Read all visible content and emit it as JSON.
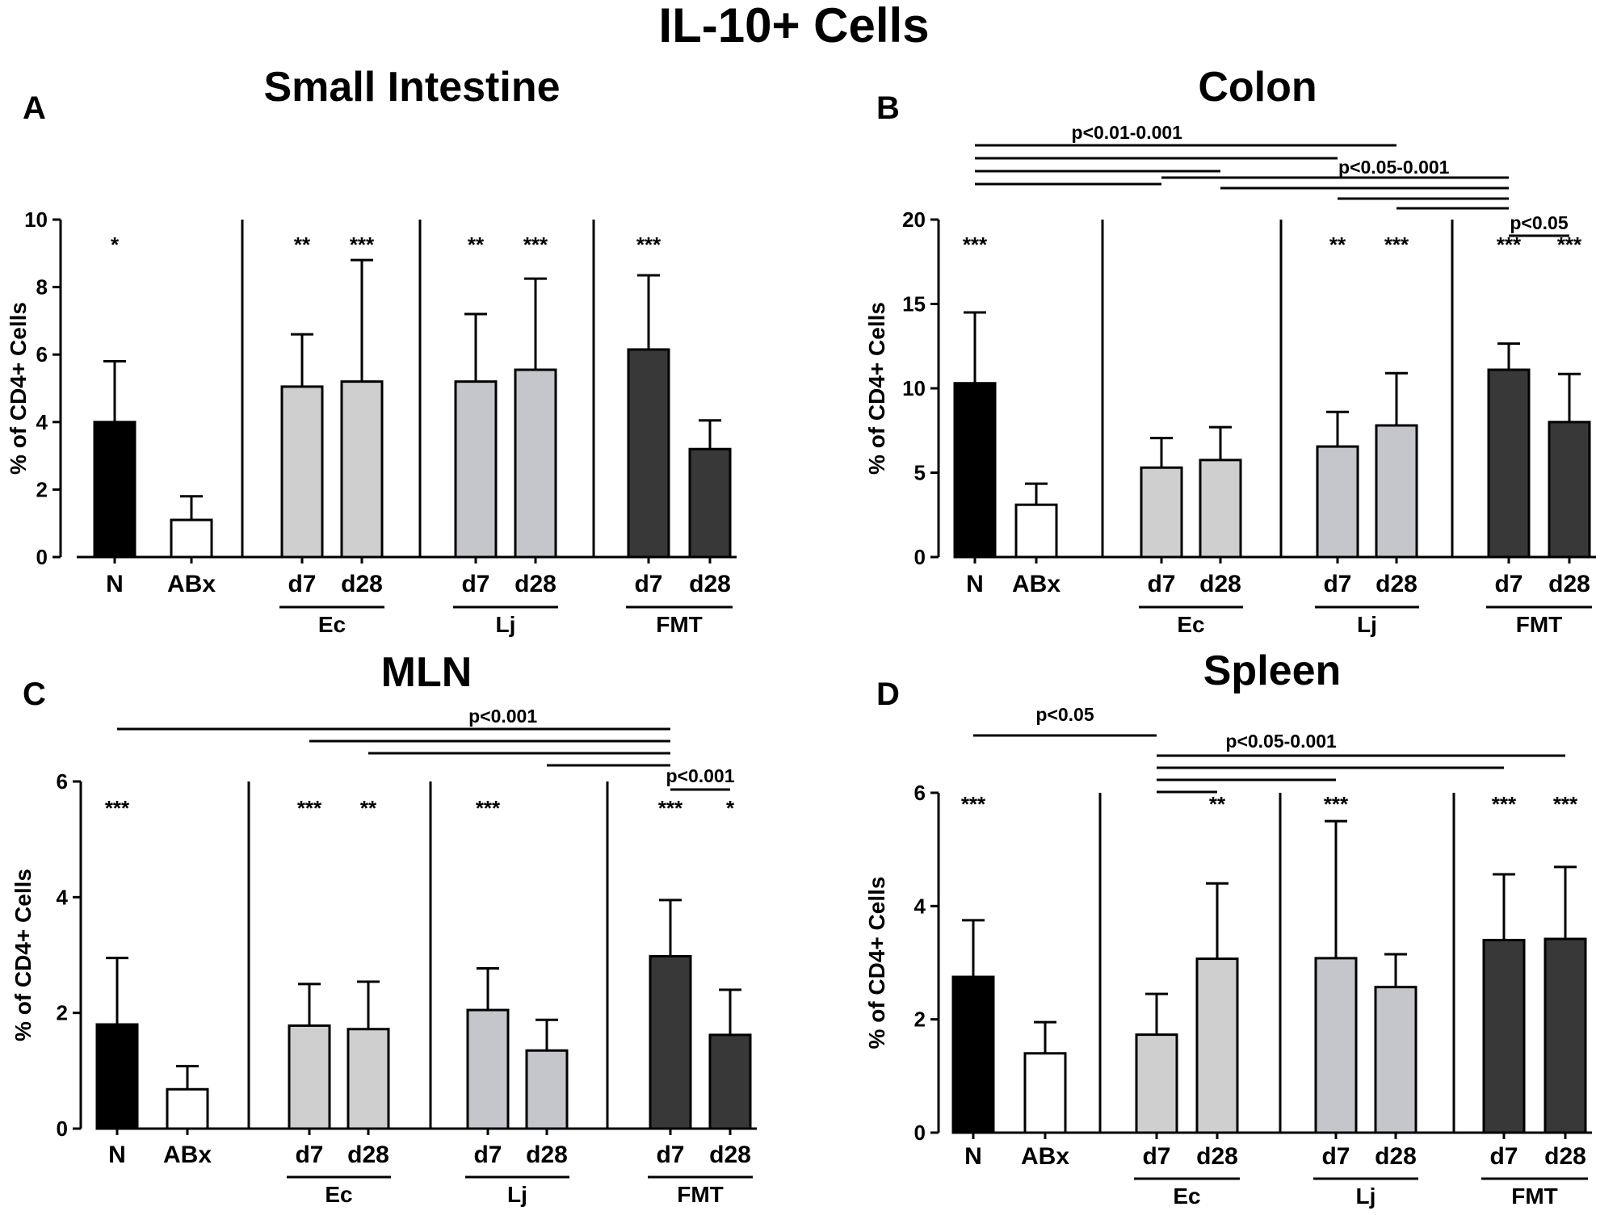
{
  "figure_title": "IL-10+ Cells",
  "colors": {
    "naive": "#000000",
    "abx": "#ffffff",
    "ec": "#cfcfcf",
    "lj": "#c4c6cb",
    "fmt": "#383838",
    "axis": "#000000"
  },
  "chart_data": [
    {
      "panel": "A",
      "type": "bar",
      "title": "Small Intestine",
      "ylabel": "% of CD4+ Cells",
      "ylim": [
        0,
        10
      ],
      "yticks": [
        0,
        2,
        4,
        6,
        8,
        10
      ],
      "categories": [
        "N",
        "ABx",
        "d7",
        "d28",
        "d7",
        "d28",
        "d7",
        "d28"
      ],
      "groups": [
        {
          "label": "Ec",
          "members": [
            2,
            3
          ]
        },
        {
          "label": "Lj",
          "members": [
            4,
            5
          ]
        },
        {
          "label": "FMT",
          "members": [
            6,
            7
          ]
        }
      ],
      "values": [
        4.0,
        1.1,
        5.05,
        5.2,
        5.2,
        5.55,
        6.15,
        3.2
      ],
      "errors": [
        1.8,
        0.7,
        1.55,
        3.6,
        2.0,
        2.7,
        2.2,
        0.85
      ],
      "fill_keys": [
        "naive",
        "abx",
        "ec",
        "ec",
        "lj",
        "lj",
        "fmt",
        "fmt"
      ],
      "significance": [
        "*",
        "",
        "**",
        "***",
        "**",
        "***",
        "***",
        ""
      ],
      "comparisons": []
    },
    {
      "panel": "B",
      "type": "bar",
      "title": "Colon",
      "ylabel": "% of CD4+ Cells",
      "ylim": [
        0,
        20
      ],
      "yticks": [
        0,
        5,
        10,
        15,
        20
      ],
      "categories": [
        "N",
        "ABx",
        "d7",
        "d28",
        "d7",
        "d28",
        "d7",
        "d28"
      ],
      "groups": [
        {
          "label": "Ec",
          "members": [
            2,
            3
          ]
        },
        {
          "label": "Lj",
          "members": [
            4,
            5
          ]
        },
        {
          "label": "FMT",
          "members": [
            6,
            7
          ]
        }
      ],
      "values": [
        10.3,
        3.1,
        5.3,
        5.75,
        6.55,
        7.8,
        11.1,
        8.0
      ],
      "errors": [
        4.2,
        1.25,
        1.75,
        1.95,
        2.05,
        3.1,
        1.55,
        2.85
      ],
      "fill_keys": [
        "naive",
        "abx",
        "ec",
        "ec",
        "lj",
        "lj",
        "fmt",
        "fmt"
      ],
      "significance": [
        "***",
        "",
        "",
        "",
        "**",
        "***",
        "***",
        "***"
      ],
      "comparisons": [
        {
          "label": "p<0.01-0.001",
          "lines": [
            [
              0,
              5
            ],
            [
              0,
              4
            ],
            [
              0,
              3
            ],
            [
              0,
              2
            ]
          ]
        },
        {
          "label": "p<0.05-0.001",
          "lines": [
            [
              2,
              6
            ],
            [
              3,
              6
            ],
            [
              4,
              6
            ],
            [
              5,
              6
            ]
          ]
        },
        {
          "label": "p<0.05",
          "lines": [
            [
              6,
              7
            ]
          ]
        }
      ]
    },
    {
      "panel": "C",
      "type": "bar",
      "title": "MLN",
      "ylabel": "% of CD4+ Cells",
      "ylim": [
        0,
        6
      ],
      "yticks": [
        0,
        2,
        4,
        6
      ],
      "categories": [
        "N",
        "ABx",
        "d7",
        "d28",
        "d7",
        "d28",
        "d7",
        "d28"
      ],
      "groups": [
        {
          "label": "Ec",
          "members": [
            2,
            3
          ]
        },
        {
          "label": "Lj",
          "members": [
            4,
            5
          ]
        },
        {
          "label": "FMT",
          "members": [
            6,
            7
          ]
        }
      ],
      "values": [
        1.8,
        0.68,
        1.78,
        1.72,
        2.05,
        1.35,
        2.98,
        1.62
      ],
      "errors": [
        1.15,
        0.4,
        0.72,
        0.82,
        0.72,
        0.53,
        0.97,
        0.78
      ],
      "fill_keys": [
        "naive",
        "abx",
        "ec",
        "ec",
        "lj",
        "lj",
        "fmt",
        "fmt"
      ],
      "significance": [
        "***",
        "",
        "***",
        "**",
        "***",
        "",
        "***",
        "*"
      ],
      "comparisons": [
        {
          "label": "p<0.001",
          "lines": [
            [
              0,
              6
            ],
            [
              2,
              6
            ],
            [
              3,
              6
            ],
            [
              5,
              6
            ]
          ]
        },
        {
          "label": "p<0.001",
          "lines": [
            [
              6,
              7
            ]
          ]
        }
      ]
    },
    {
      "panel": "D",
      "type": "bar",
      "title": "Spleen",
      "ylabel": "% of CD4+ Cells",
      "ylim": [
        0,
        6
      ],
      "yticks": [
        0,
        2,
        4,
        6
      ],
      "categories": [
        "N",
        "ABx",
        "d7",
        "d28",
        "d7",
        "d28",
        "d7",
        "d28"
      ],
      "groups": [
        {
          "label": "Ec",
          "members": [
            2,
            3
          ]
        },
        {
          "label": "Lj",
          "members": [
            4,
            5
          ]
        },
        {
          "label": "FMT",
          "members": [
            6,
            7
          ]
        }
      ],
      "values": [
        2.75,
        1.4,
        1.73,
        3.07,
        3.08,
        2.57,
        3.4,
        3.42
      ],
      "errors": [
        1.0,
        0.55,
        0.72,
        1.33,
        2.42,
        0.58,
        1.16,
        1.27
      ],
      "fill_keys": [
        "naive",
        "abx",
        "ec",
        "ec",
        "lj",
        "lj",
        "fmt",
        "fmt"
      ],
      "significance": [
        "***",
        "",
        "",
        "**",
        "***",
        "",
        "***",
        "***"
      ],
      "comparisons": [
        {
          "label": "p<0.05",
          "lines": [
            [
              0,
              2
            ]
          ]
        },
        {
          "label": "p<0.05-0.001",
          "lines": [
            [
              2,
              7
            ],
            [
              2,
              6
            ],
            [
              2,
              4
            ],
            [
              2,
              3
            ]
          ]
        }
      ]
    }
  ]
}
